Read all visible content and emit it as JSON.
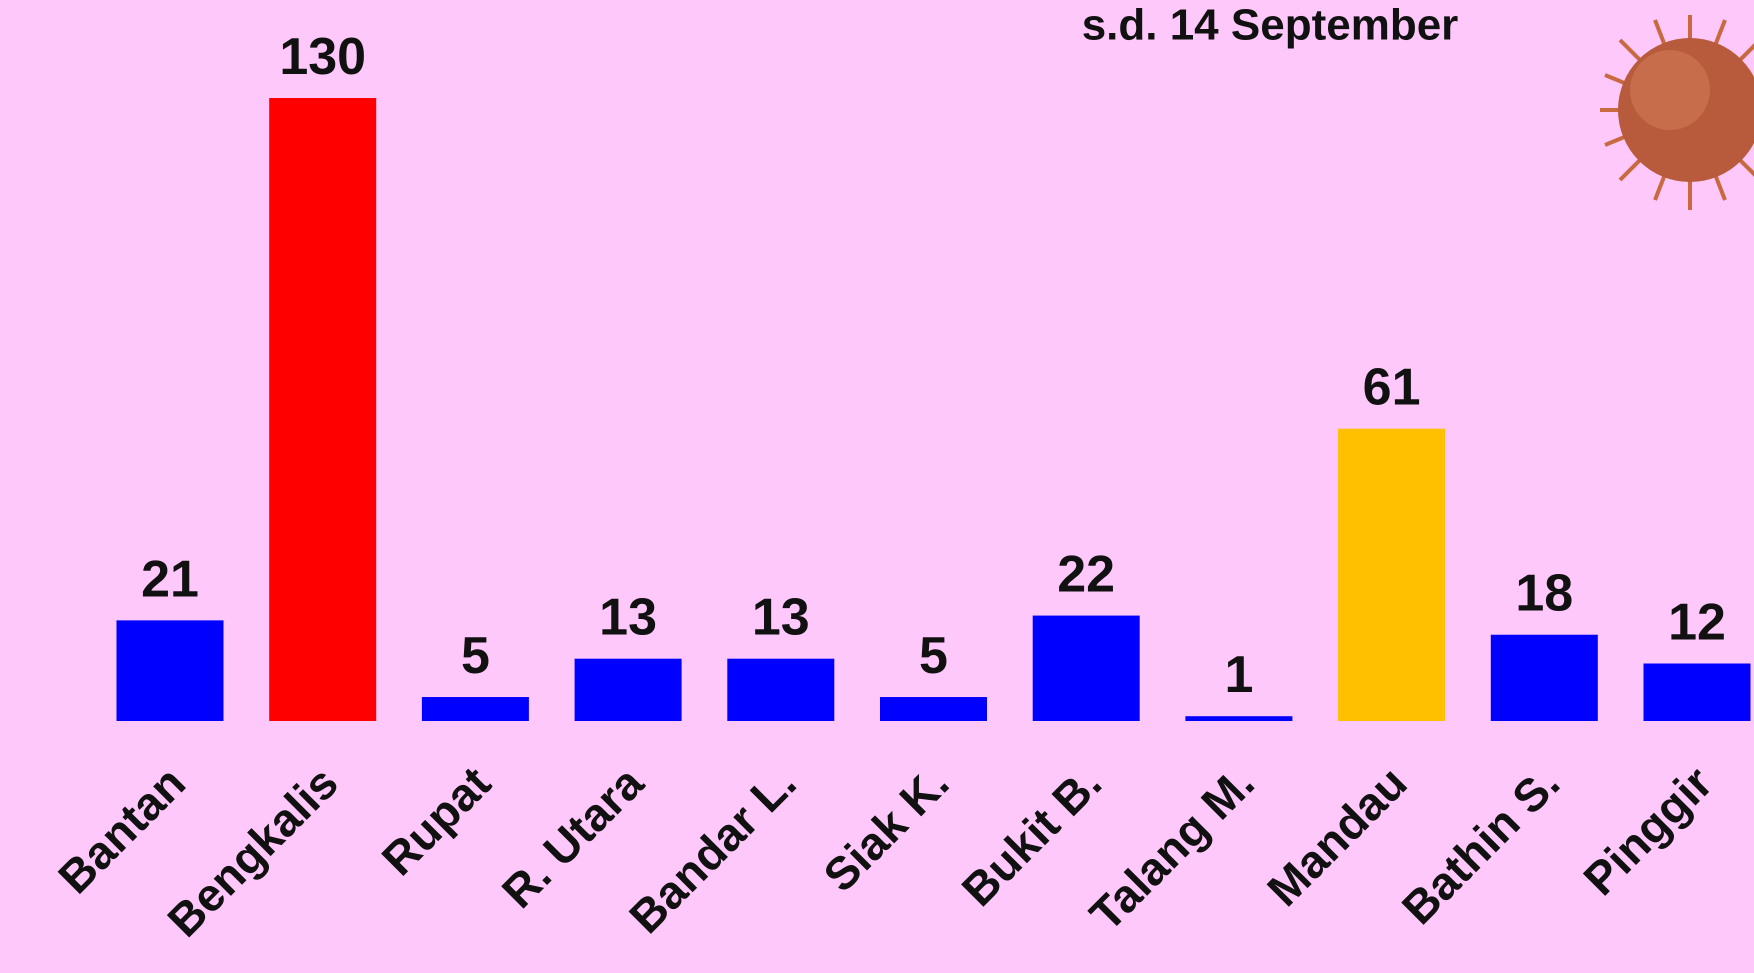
{
  "chart_data": {
    "type": "bar",
    "subtitle": "s.d. 14 September",
    "categories": [
      "Bantan",
      "Bengkalis",
      "Rupat",
      "R. Utara",
      "Bandar L.",
      "Siak K.",
      "Bukit B.",
      "Talang M.",
      "Mandau",
      "Bathin S.",
      "Pinggir"
    ],
    "values": [
      21,
      130,
      5,
      13,
      13,
      5,
      22,
      1,
      61,
      18,
      12
    ],
    "colors": [
      "#0000ff",
      "#ff0000",
      "#0000ff",
      "#0000ff",
      "#0000ff",
      "#0000ff",
      "#0000ff",
      "#0000ff",
      "#ffc000",
      "#0000ff",
      "#0000ff"
    ],
    "grid": false
  }
}
